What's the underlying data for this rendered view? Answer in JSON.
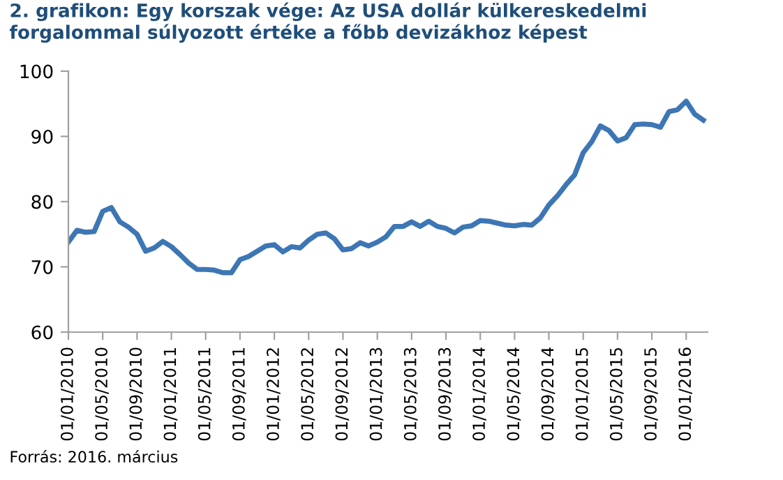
{
  "chart_data": {
    "type": "line",
    "title": "2. grafikon: Egy korszak vége: Az USA dollár külkereskedelmi forgalommal súlyozott értéke a főbb devizákhoz képest",
    "annotations": [
      "Forrás: 2016. március"
    ],
    "categories": [
      "01/01/2010",
      null,
      null,
      null,
      "01/05/2010",
      null,
      null,
      null,
      "01/09/2010",
      null,
      null,
      null,
      "01/01/2011",
      null,
      null,
      null,
      "01/05/2011",
      null,
      null,
      null,
      "01/09/2011",
      null,
      null,
      null,
      "01/01/2012",
      null,
      null,
      null,
      "01/05/2012",
      null,
      null,
      null,
      "01/09/2012",
      null,
      null,
      null,
      "01/01/2013",
      null,
      null,
      null,
      "01/05/2013",
      null,
      null,
      null,
      "01/09/2013",
      null,
      null,
      null,
      "01/01/2014",
      null,
      null,
      null,
      "01/05/2014",
      null,
      null,
      null,
      "01/09/2014",
      null,
      null,
      null,
      "01/01/2015",
      null,
      null,
      null,
      "01/05/2015",
      null,
      null,
      null,
      "01/09/2015",
      null,
      null,
      null,
      "01/01/2016",
      null,
      null
    ],
    "series": [
      {
        "color": "#3d76b5",
        "values": [
          73.8,
          75.6,
          75.3,
          75.4,
          78.5,
          79.1,
          76.9,
          76.1,
          75.0,
          72.4,
          72.9,
          73.9,
          73.1,
          71.9,
          70.6,
          69.6,
          69.6,
          69.5,
          69.1,
          69.1,
          71.1,
          71.6,
          72.4,
          73.2,
          73.4,
          72.3,
          73.1,
          72.9,
          74.1,
          75.0,
          75.2,
          74.3,
          72.6,
          72.8,
          73.7,
          73.2,
          73.8,
          74.6,
          76.2,
          76.2,
          76.9,
          76.2,
          77.0,
          76.2,
          75.9,
          75.2,
          76.1,
          76.3,
          77.1,
          77.0,
          76.7,
          76.4,
          76.3,
          76.5,
          76.4,
          77.5,
          79.5,
          80.9,
          82.6,
          84.1,
          87.5,
          89.2,
          91.6,
          90.9,
          89.3,
          89.8,
          91.8,
          91.9,
          91.8,
          91.4,
          93.8,
          94.1,
          95.4,
          93.4,
          92.5
        ]
      }
    ],
    "ylim": [
      60,
      100
    ],
    "yticks": [
      60,
      70,
      80,
      90,
      100
    ],
    "grid": false,
    "legend": false,
    "marker": "none",
    "line_style": "solid"
  }
}
